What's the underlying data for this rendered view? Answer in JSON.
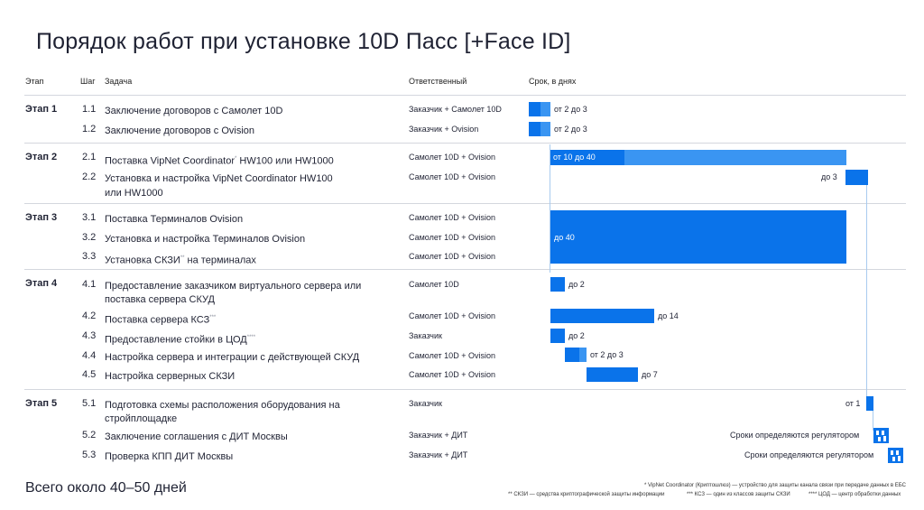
{
  "title": "Порядок работ при установке 10D Пасс [+Face ID]",
  "headers": {
    "stage": "Этап",
    "step": "Шаг",
    "task": "Задача",
    "responsible": "Ответственный",
    "term": "Срок, в днях"
  },
  "stages": [
    "Этап 1",
    "Этап 2",
    "Этап 3",
    "Этап 4",
    "Этап 5"
  ],
  "rows": [
    {
      "step": "1.1",
      "task": "Заключение договоров с Самолет 10D",
      "resp": "Заказчик + Самолет 10D",
      "term": "от 2 до 3"
    },
    {
      "step": "1.2",
      "task": "Заключение договоров с Ovision",
      "resp": "Заказчик + Ovision",
      "term": "от 2 до 3"
    },
    {
      "step": "2.1",
      "task": "Поставка VipNet Coordinator",
      "sup": "*",
      "task_tail": " HW100 или HW1000",
      "resp": "Самолет 10D + Ovision",
      "term": "от 10 до 40"
    },
    {
      "step": "2.2",
      "task": "Установка и настройка VipNet Coordinator HW100",
      "task2": "или HW1000",
      "resp": "Самолет 10D + Ovision",
      "term": "до 3"
    },
    {
      "step": "3.1",
      "task": "Поставка Терминалов Ovision",
      "resp": "Самолет 10D + Ovision"
    },
    {
      "step": "3.2",
      "task": "Установка и настройка Терминалов Ovision",
      "resp": "Самолет 10D + Ovision",
      "term": "до 40"
    },
    {
      "step": "3.3",
      "task": "Установка СКЗИ",
      "sup": "**",
      "task_tail": " на терминалах",
      "resp": "Самолет 10D + Ovision"
    },
    {
      "step": "4.1",
      "task": "Предоставление заказчиком виртуального сервера или",
      "task2": "поставка сервера СКУД",
      "resp": "Самолет 10D",
      "term": "до 2"
    },
    {
      "step": "4.2",
      "task": "Поставка сервера КСЗ",
      "sup": "***",
      "resp": "Самолет 10D + Ovision",
      "term": "до 14"
    },
    {
      "step": "4.3",
      "task": "Предоставление стойки в ЦОД",
      "sup": "****",
      "resp": "Заказчик",
      "term": "до 2"
    },
    {
      "step": "4.4",
      "task": "Настройка сервера и интеграции с действующей СКУД",
      "resp": "Самолет 10D + Ovision",
      "term": "от 2 до 3"
    },
    {
      "step": "4.5",
      "task": "Настройка серверных СКЗИ",
      "resp": "Самолет 10D + Ovision",
      "term": "до 7"
    },
    {
      "step": "5.1",
      "task": "Подготовка схемы расположения оборудования на",
      "task2": "стройплощадке",
      "resp": "Заказчик",
      "term": "от 1"
    },
    {
      "step": "5.2",
      "task": "Заключение соглашения с ДИТ Москвы",
      "resp": "Заказчик + ДИТ",
      "term": "Сроки определяются регулятором"
    },
    {
      "step": "5.3",
      "task": "Проверка КПП ДИТ Москвы",
      "resp": "Заказчик + ДИТ",
      "term": "Сроки определяются регулятором"
    }
  ],
  "total": "Всего около 40–50 дней",
  "footnotes": {
    "f1": "* VipNet Coordinator (Криптошлюз) — устройство для защиты канала связи при передаче данных в ЕБС",
    "f2": "** СКЗИ — средства криптографической защиты информации",
    "f3": "*** КСЗ — один из классов защиты СКЗИ",
    "f4": "**** ЦОД — центр обработки данных"
  },
  "colors": {
    "bar": "#0a73ea",
    "bar_light": "#3a95f2",
    "line": "#a8cbef"
  }
}
